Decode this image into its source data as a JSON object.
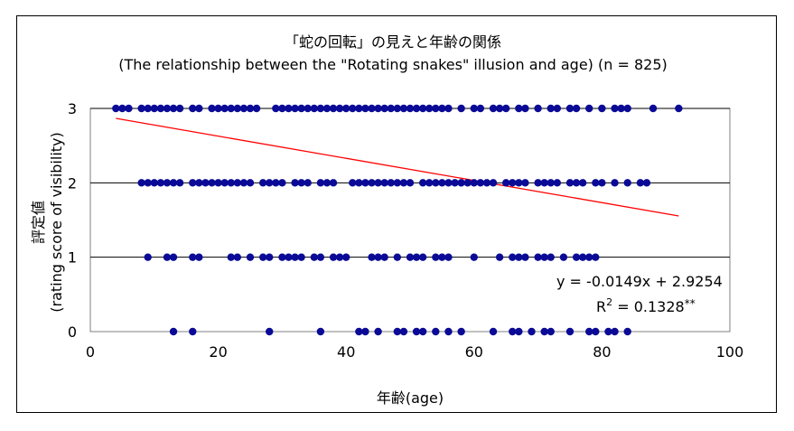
{
  "chart_data": {
    "type": "scatter",
    "title": "「蛇の回転」の見えと年齢の関係",
    "subtitle": "(The relationship between the \"Rotating snakes\" illusion and age) (n = 825)",
    "xlabel": "年齢(age)",
    "ylabel_line1": "評定値",
    "ylabel_line2": "(rating score of visibility)",
    "xlim": [
      0,
      100
    ],
    "ylim": [
      0,
      3
    ],
    "xticks": [
      "0",
      "20",
      "40",
      "60",
      "80",
      "100"
    ],
    "yticks": [
      "0",
      "1",
      "2",
      "3"
    ],
    "grid": "horizontal",
    "colors": {
      "points": "#0a0a96",
      "trendline": "#ff0000",
      "plot_border": "#808080"
    },
    "series": [
      {
        "x": [
          4,
          5,
          6,
          8,
          9,
          10,
          11,
          12,
          13,
          14,
          16,
          17,
          19,
          20,
          21,
          22,
          23,
          24,
          25,
          26,
          29,
          30,
          31,
          32,
          33,
          34,
          35,
          36,
          37,
          38,
          39,
          40,
          41,
          42,
          43,
          44,
          45,
          46,
          47,
          48,
          49,
          50,
          51,
          52,
          53,
          54,
          55,
          56,
          58,
          60,
          61,
          63,
          64,
          65,
          67,
          68,
          70,
          72,
          73,
          75,
          76,
          78,
          80,
          82,
          83,
          84,
          88,
          92
        ],
        "y": [
          3,
          3,
          3,
          3,
          3,
          3,
          3,
          3,
          3,
          3,
          3,
          3,
          3,
          3,
          3,
          3,
          3,
          3,
          3,
          3,
          3,
          3,
          3,
          3,
          3,
          3,
          3,
          3,
          3,
          3,
          3,
          3,
          3,
          3,
          3,
          3,
          3,
          3,
          3,
          3,
          3,
          3,
          3,
          3,
          3,
          3,
          3,
          3,
          3,
          3,
          3,
          3,
          3,
          3,
          3,
          3,
          3,
          3,
          3,
          3,
          3,
          3,
          3,
          3,
          3,
          3,
          3,
          3
        ]
      },
      {
        "x": [
          8,
          9,
          10,
          11,
          12,
          13,
          14,
          16,
          17,
          18,
          19,
          20,
          21,
          22,
          23,
          24,
          25,
          27,
          28,
          29,
          30,
          32,
          33,
          34,
          36,
          37,
          38,
          41,
          42,
          43,
          44,
          45,
          46,
          47,
          48,
          49,
          50,
          52,
          53,
          54,
          55,
          56,
          57,
          58,
          59,
          60,
          61,
          62,
          63,
          65,
          66,
          67,
          68,
          70,
          71,
          72,
          73,
          75,
          76,
          77,
          79,
          80,
          82,
          84,
          86,
          87
        ],
        "y": [
          2,
          2,
          2,
          2,
          2,
          2,
          2,
          2,
          2,
          2,
          2,
          2,
          2,
          2,
          2,
          2,
          2,
          2,
          2,
          2,
          2,
          2,
          2,
          2,
          2,
          2,
          2,
          2,
          2,
          2,
          2,
          2,
          2,
          2,
          2,
          2,
          2,
          2,
          2,
          2,
          2,
          2,
          2,
          2,
          2,
          2,
          2,
          2,
          2,
          2,
          2,
          2,
          2,
          2,
          2,
          2,
          2,
          2,
          2,
          2,
          2,
          2,
          2,
          2,
          2,
          2
        ]
      },
      {
        "x": [
          9,
          12,
          13,
          16,
          17,
          22,
          23,
          25,
          27,
          28,
          30,
          31,
          32,
          33,
          35,
          36,
          38,
          39,
          40,
          44,
          45,
          46,
          48,
          50,
          51,
          52,
          54,
          55,
          56,
          60,
          64,
          66,
          67,
          68,
          70,
          71,
          72,
          74,
          76,
          77,
          78,
          79
        ],
        "y": [
          1,
          1,
          1,
          1,
          1,
          1,
          1,
          1,
          1,
          1,
          1,
          1,
          1,
          1,
          1,
          1,
          1,
          1,
          1,
          1,
          1,
          1,
          1,
          1,
          1,
          1,
          1,
          1,
          1,
          1,
          1,
          1,
          1,
          1,
          1,
          1,
          1,
          1,
          1,
          1,
          1,
          1
        ]
      },
      {
        "x": [
          13,
          16,
          28,
          36,
          42,
          43,
          45,
          48,
          49,
          51,
          52,
          54,
          56,
          58,
          63,
          66,
          67,
          69,
          71,
          72,
          75,
          78,
          79,
          81,
          82,
          84
        ],
        "y": [
          0,
          0,
          0,
          0,
          0,
          0,
          0,
          0,
          0,
          0,
          0,
          0,
          0,
          0,
          0,
          0,
          0,
          0,
          0,
          0,
          0,
          0,
          0,
          0,
          0,
          0
        ]
      }
    ],
    "trendline": {
      "x": [
        4,
        92
      ],
      "y": [
        2.866,
        1.555
      ]
    },
    "annotations": {
      "equation": "y = -0.0149x + 2.9254",
      "r2_prefix": "R",
      "r2_sup": "2",
      "r2_value": " = 0.1328",
      "r2_sig": "**"
    }
  }
}
